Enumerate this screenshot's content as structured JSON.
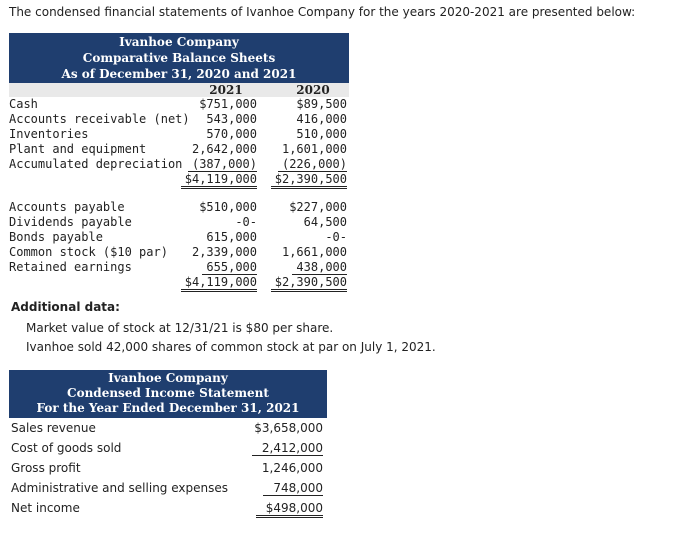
{
  "intro": "The condensed financial statements of Ivanhoe Company for the years 2020-2021 are presented below:",
  "balance_sheet": {
    "header": [
      "Ivanhoe Company",
      "Comparative Balance Sheets",
      "As of December 31, 2020 and 2021"
    ],
    "col1": "2021",
    "col2": "2020",
    "assets": [
      {
        "label": "Cash",
        "v1": "$751,000",
        "v2": "$89,500"
      },
      {
        "label": "Accounts receivable (net)",
        "v1": "543,000",
        "v2": "416,000"
      },
      {
        "label": "Inventories",
        "v1": "570,000",
        "v2": "510,000"
      },
      {
        "label": "Plant and equipment",
        "v1": "2,642,000",
        "v2": "1,601,000"
      },
      {
        "label": "Accumulated depreciation",
        "v1": "(387,000)",
        "v2": "(226,000)"
      }
    ],
    "assets_total": {
      "v1": "$4,119,000",
      "v2": "$2,390,500"
    },
    "liabilities": [
      {
        "label": "Accounts payable",
        "v1": "$510,000",
        "v2": "$227,000"
      },
      {
        "label": "Dividends payable",
        "v1": "-0-",
        "v2": "64,500"
      },
      {
        "label": "Bonds payable",
        "v1": "615,000",
        "v2": "-0-"
      },
      {
        "label": "Common stock ($10 par)",
        "v1": "2,339,000",
        "v2": "1,661,000"
      },
      {
        "label": "Retained earnings",
        "v1": "655,000",
        "v2": "438,000"
      }
    ],
    "liabilities_total": {
      "v1": "$4,119,000",
      "v2": "$2,390,500"
    }
  },
  "additional": {
    "title": "Additional data:",
    "lines": [
      "Market value of stock at 12/31/21 is $80 per share.",
      "Ivanhoe sold 42,000 shares of common stock at par on July 1, 2021."
    ]
  },
  "income_statement": {
    "header": [
      "Ivanhoe Company",
      "Condensed Income Statement",
      "For the Year Ended December 31, 2021"
    ],
    "rows": [
      {
        "label": "Sales revenue",
        "value": "$3,658,000"
      },
      {
        "label": "Cost of goods sold",
        "value": "2,412,000"
      },
      {
        "label": "Gross profit",
        "value": "1,246,000"
      },
      {
        "label": "Administrative and selling expenses",
        "value": "748,000"
      },
      {
        "label": "Net income",
        "value": "$498,000"
      }
    ]
  }
}
